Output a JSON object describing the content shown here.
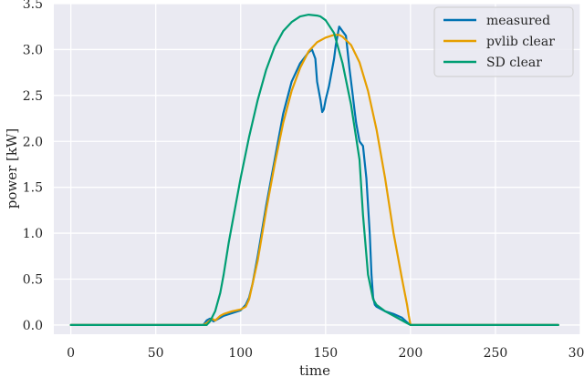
{
  "chart_data": {
    "type": "line",
    "title": "",
    "xlabel": "time",
    "ylabel": "power [kW]",
    "xlim": [
      -10,
      300
    ],
    "ylim": [
      -0.1,
      3.5
    ],
    "xticks": [
      0,
      50,
      100,
      150,
      200,
      250,
      300
    ],
    "yticks": [
      0.0,
      0.5,
      1.0,
      1.5,
      2.0,
      2.5,
      3.0,
      3.5
    ],
    "xtick_labels": [
      "0",
      "50",
      "100",
      "150",
      "200",
      "250",
      "300"
    ],
    "ytick_labels": [
      "0.0",
      "0.5",
      "1.0",
      "1.5",
      "2.0",
      "2.5",
      "3.0",
      "3.5"
    ],
    "grid": true,
    "background": "#eaeaf2",
    "legend_position": "top-right",
    "series": [
      {
        "name": "measured",
        "color": "#0072b2",
        "x": [
          0,
          78,
          80,
          82,
          84,
          86,
          88,
          90,
          95,
          100,
          103,
          105,
          107,
          110,
          115,
          120,
          125,
          130,
          135,
          140,
          142,
          144,
          145,
          147,
          148,
          149,
          150,
          152,
          155,
          156,
          158,
          160,
          162,
          164,
          166,
          167,
          168,
          170,
          172,
          174,
          176,
          177,
          178,
          179,
          180,
          182,
          185,
          190,
          195,
          198,
          200,
          287
        ],
        "y": [
          0.0,
          0.0,
          0.05,
          0.07,
          0.04,
          0.06,
          0.08,
          0.1,
          0.13,
          0.16,
          0.22,
          0.3,
          0.45,
          0.75,
          1.3,
          1.8,
          2.3,
          2.65,
          2.85,
          2.97,
          3.0,
          2.9,
          2.65,
          2.45,
          2.32,
          2.35,
          2.45,
          2.6,
          2.9,
          3.05,
          3.25,
          3.2,
          3.15,
          2.8,
          2.5,
          2.35,
          2.2,
          2.0,
          1.95,
          1.6,
          1.0,
          0.55,
          0.3,
          0.22,
          0.2,
          0.18,
          0.15,
          0.12,
          0.08,
          0.03,
          0.0,
          0.0
        ]
      },
      {
        "name": "pvlib clear",
        "color": "#e69f00",
        "x": [
          0,
          78,
          80,
          83,
          85,
          88,
          90,
          95,
          100,
          103,
          105,
          110,
          115,
          120,
          125,
          130,
          135,
          140,
          145,
          150,
          155,
          158,
          160,
          165,
          170,
          175,
          180,
          185,
          190,
          195,
          198,
          199,
          200,
          287
        ],
        "y": [
          0.0,
          0.0,
          0.02,
          0.07,
          0.05,
          0.1,
          0.12,
          0.15,
          0.17,
          0.2,
          0.28,
          0.7,
          1.25,
          1.75,
          2.2,
          2.55,
          2.8,
          2.98,
          3.08,
          3.13,
          3.16,
          3.16,
          3.14,
          3.05,
          2.86,
          2.55,
          2.13,
          1.6,
          1.0,
          0.5,
          0.22,
          0.1,
          0.0,
          0.0
        ]
      },
      {
        "name": "SD clear",
        "color": "#009e73",
        "x": [
          0,
          80,
          82,
          85,
          88,
          90,
          93,
          95,
          100,
          105,
          110,
          115,
          120,
          125,
          130,
          135,
          140,
          145,
          147,
          150,
          155,
          160,
          165,
          170,
          172,
          175,
          178,
          180,
          185,
          190,
          195,
          198,
          200,
          287
        ],
        "y": [
          0.0,
          0.0,
          0.04,
          0.15,
          0.35,
          0.55,
          0.9,
          1.1,
          1.6,
          2.05,
          2.45,
          2.78,
          3.03,
          3.2,
          3.3,
          3.36,
          3.38,
          3.37,
          3.36,
          3.32,
          3.18,
          2.85,
          2.4,
          1.8,
          1.2,
          0.55,
          0.28,
          0.22,
          0.15,
          0.1,
          0.05,
          0.02,
          0.0,
          0.0
        ]
      }
    ]
  }
}
